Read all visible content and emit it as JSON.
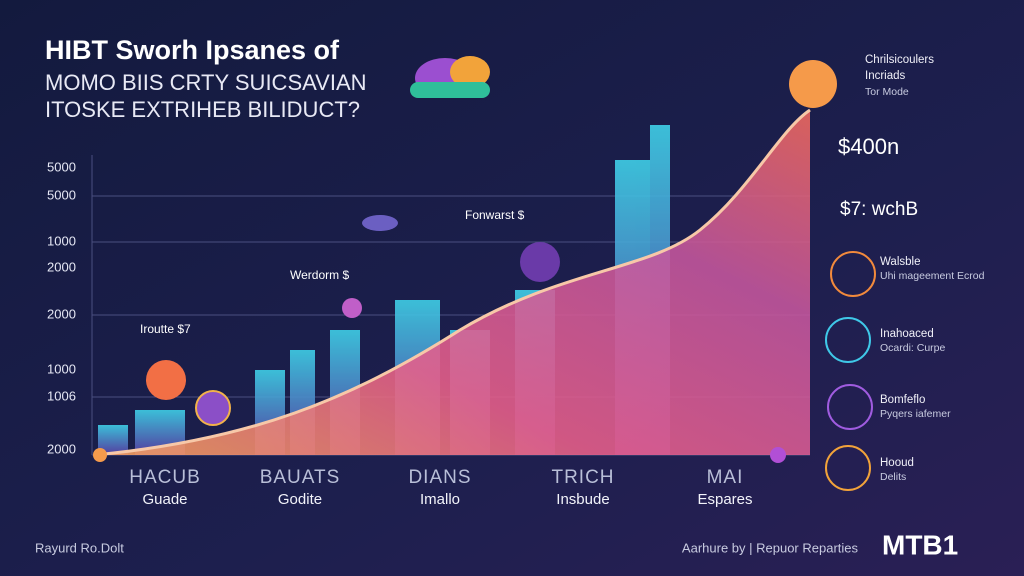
{
  "header": {
    "title": "HIBT Sworh Ipsanes of",
    "subtitle_lines": [
      "MOMO BIIS CRTY SUICSAVIAN",
      "ITOSKE EXTRIHEB BILIDUCT?"
    ]
  },
  "axis_labels": [
    5000,
    5000,
    1000,
    2000,
    2000,
    1000,
    1006,
    2000
  ],
  "annotations": [
    "Fonwarst $",
    "Werdorm $",
    "Iroutte $7"
  ],
  "categories": [
    {
      "top": "HACUB",
      "bottom": "Guade"
    },
    {
      "top": "BAUATS",
      "bottom": "Godite"
    },
    {
      "top": "DIANS",
      "bottom": "Imallo"
    },
    {
      "top": "TRICH",
      "bottom": "Insbude"
    },
    {
      "top": "MAI",
      "bottom": "Espares"
    }
  ],
  "side": {
    "header": {
      "title": "Chrilsicoulers",
      "line2": "Incriads",
      "line3": "Tor Mode"
    },
    "amounts": [
      "$400n",
      "$7: wchB"
    ],
    "items": [
      {
        "title": "Walsble",
        "desc": "Uhi mageement Ecrod"
      },
      {
        "title": "Inahoaced",
        "desc": "Ocardi: Curpe"
      },
      {
        "title": "Bomfeflo",
        "desc": "Pyqers iafemer"
      },
      {
        "title": "Hooud",
        "desc": "Delits"
      }
    ]
  },
  "footer": {
    "left": "Rayurd Ro.Dolt",
    "right": "Aarhure by | Repuor Reparties",
    "logo": "MTB1"
  }
}
